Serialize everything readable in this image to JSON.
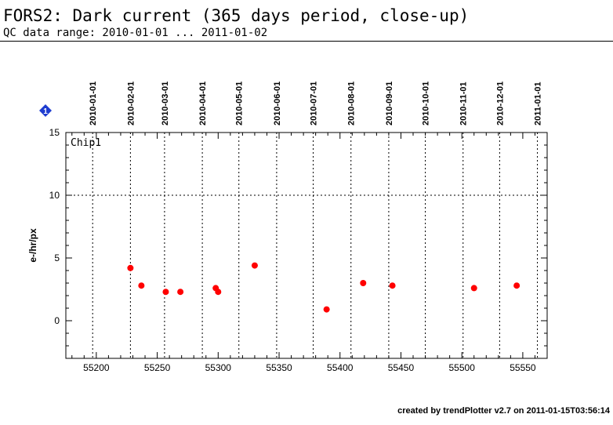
{
  "header": {
    "title": "FORS2: Dark current (365 days period, close-up)",
    "subtitle": "QC data range: 2010-01-01 ... 2011-01-02"
  },
  "footer": {
    "text": "created by trendPlotter v2.7 on 2011-01-15T03:56:14"
  },
  "badge": {
    "label": "1",
    "color": "#1e3cd0"
  },
  "chart_data": {
    "type": "scatter",
    "panel_label": "Chip1",
    "ylabel": "e-/hr/px",
    "xlabel": "",
    "xlim": [
      55175,
      55570
    ],
    "ylim": [
      -3,
      15
    ],
    "x_ticks": [
      55200,
      55250,
      55300,
      55350,
      55400,
      55450,
      55500,
      55550
    ],
    "y_ticks": [
      0,
      5,
      10,
      15
    ],
    "top_date_ticks": [
      {
        "label": "2010-01-01",
        "mjd": 55197
      },
      {
        "label": "2010-02-01",
        "mjd": 55228
      },
      {
        "label": "2010-03-01",
        "mjd": 55256
      },
      {
        "label": "2010-04-01",
        "mjd": 55287
      },
      {
        "label": "2010-05-01",
        "mjd": 55317
      },
      {
        "label": "2010-06-01",
        "mjd": 55348
      },
      {
        "label": "2010-07-01",
        "mjd": 55378
      },
      {
        "label": "2010-08-01",
        "mjd": 55409
      },
      {
        "label": "2010-09-01",
        "mjd": 55440
      },
      {
        "label": "2010-10-01",
        "mjd": 55470
      },
      {
        "label": "2010-11-01",
        "mjd": 55501
      },
      {
        "label": "2010-12-01",
        "mjd": 55531
      },
      {
        "label": "2011-01-01",
        "mjd": 55562
      }
    ],
    "hline": 10,
    "point_color": "#ff0000",
    "series": [
      {
        "x": [
          55228,
          55237,
          55257,
          55269,
          55298,
          55300,
          55330,
          55389,
          55419,
          55443,
          55510,
          55545
        ],
        "y": [
          4.2,
          2.8,
          2.3,
          2.3,
          2.6,
          2.3,
          4.4,
          0.9,
          3.0,
          2.8,
          2.6,
          2.8
        ]
      }
    ]
  }
}
